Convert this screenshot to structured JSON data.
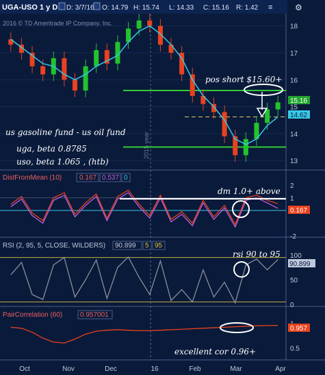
{
  "header": {
    "symbol": "UGA-USO 1 y D",
    "date": "D: 3/7/16",
    "open": "O: 14.79",
    "high": "H: 15.74",
    "low": "L: 14.33",
    "close": "C: 15.16",
    "range": "R: 1.42",
    "copyright": "2016 © TD Ameritrade IP Company, Inc."
  },
  "colors": {
    "background": "#0a1a3a",
    "up_candle": "#22c32e",
    "down_candle": "#e8421e",
    "ma_line": "#38c8e8",
    "support_lines": "#33cc33",
    "annotation": "#ffffff"
  },
  "price_labels": {
    "close": "15.16",
    "ma": "14.62"
  },
  "annotations": {
    "pos_short": "pos short $15.60+",
    "fund_desc": "us gasoline fund - us oil fund",
    "uga_beta": "uga, beta 0.8785",
    "uso_beta": "uso, beta 1.065 , (htb)",
    "year_marker": "2015 year",
    "dm_note": "dm 1.0+ above",
    "rsi_note": "rsi 90 to 95",
    "cor_note": "excellent cor 0.96+"
  },
  "x_axis": {
    "labels": [
      "Oct",
      "Nov",
      "Dec",
      "16",
      "Feb",
      "Mar",
      "Apr"
    ]
  },
  "panels": {
    "price": {
      "y_ticks": [
        "18",
        "17",
        "16",
        "15",
        "14",
        "13"
      ]
    },
    "dfm": {
      "title": "DistFromMean (10)",
      "v1": "0.167",
      "v2": "0.537",
      "v3": "0",
      "y_ticks": [
        "2",
        "1",
        "-2"
      ],
      "last_label": "0.167"
    },
    "rsi": {
      "title": "RSI (2, 95, 5, CLOSE, WILDERS)",
      "v1": "90.899",
      "v2": "5",
      "v3": "95",
      "y_ticks": [
        "100",
        "50",
        "0"
      ],
      "last_label": "90.899"
    },
    "cor": {
      "title": "PairCorrelation (60)",
      "v1": "0.957001",
      "y_ticks": [
        "1",
        "0.5"
      ],
      "last_label": "0.957"
    }
  },
  "chart_data": [
    {
      "type": "candlestick",
      "title": "UGA-USO 1 y D",
      "x": [
        "2015-09-15",
        "2015-09-22",
        "2015-09-29",
        "2015-10-06",
        "2015-10-13",
        "2015-10-20",
        "2015-10-27",
        "2015-11-03",
        "2015-11-10",
        "2015-11-17",
        "2015-11-24",
        "2015-12-01",
        "2015-12-08",
        "2015-12-15",
        "2015-12-22",
        "2015-12-29",
        "2016-01-05",
        "2016-01-12",
        "2016-01-19",
        "2016-01-26",
        "2016-02-02",
        "2016-02-09",
        "2016-02-16",
        "2016-02-23",
        "2016-03-01",
        "2016-03-07"
      ],
      "close": [
        17.3,
        17.0,
        16.5,
        16.2,
        16.8,
        16.0,
        15.6,
        16.5,
        17.1,
        16.6,
        17.4,
        17.9,
        18.2,
        18.0,
        17.3,
        17.0,
        16.2,
        15.4,
        15.1,
        14.8,
        13.9,
        13.2,
        13.8,
        14.4,
        14.9,
        15.16
      ],
      "ma": [
        17.5,
        17.2,
        16.9,
        16.6,
        16.5,
        16.2,
        16.0,
        16.2,
        16.5,
        16.7,
        16.9,
        17.4,
        17.8,
        18.0,
        17.7,
        17.3,
        16.8,
        16.0,
        15.4,
        15.0,
        14.5,
        13.8,
        13.6,
        13.8,
        14.3,
        14.62
      ],
      "levels": [
        15.6,
        14.62,
        13.5
      ],
      "ylim": [
        12.7,
        18.4
      ],
      "y_ticks": [
        18,
        17,
        16,
        15,
        14,
        13
      ]
    },
    {
      "type": "line",
      "title": "DistFromMean (10)",
      "series": [
        {
          "values": [
            0.3,
            0.9,
            -0.4,
            -1.0,
            0.8,
            1.2,
            -0.5,
            0.4,
            1.1,
            -0.8,
            0.9,
            1.4,
            0.3,
            -0.6,
            1.0,
            -0.9,
            -0.3,
            -1.2,
            0.6,
            -0.7,
            0.2,
            -1.3,
            0.8,
            1.0,
            0.6,
            0.167
          ]
        },
        {
          "values": [
            0.5,
            1.1,
            -0.2,
            -0.8,
            1.0,
            1.4,
            -0.3,
            0.6,
            1.3,
            -0.6,
            1.1,
            1.6,
            0.5,
            -0.4,
            1.2,
            -0.7,
            -0.1,
            -1.0,
            0.8,
            -0.5,
            0.4,
            -1.1,
            1.0,
            1.2,
            0.8,
            0.537
          ]
        }
      ],
      "levels": [
        1.0,
        0.0
      ],
      "ylim": [
        -2,
        2
      ],
      "y_ticks": [
        2,
        1,
        -2
      ]
    },
    {
      "type": "line",
      "title": "RSI (2, 95, 5, CLOSE, WILDERS)",
      "series": [
        {
          "values": [
            60,
            85,
            20,
            10,
            80,
            95,
            15,
            50,
            90,
            12,
            75,
            96,
            55,
            20,
            88,
            8,
            30,
            5,
            70,
            15,
            45,
            3,
            80,
            92,
            70,
            90.899
          ]
        }
      ],
      "levels": [
        95,
        5
      ],
      "ylim": [
        0,
        100
      ],
      "y_ticks": [
        100,
        50,
        0
      ]
    },
    {
      "type": "line",
      "title": "PairCorrelation (60)",
      "series": [
        {
          "values": [
            0.92,
            0.9,
            0.82,
            0.7,
            0.62,
            0.6,
            0.68,
            0.78,
            0.84,
            0.86,
            0.87,
            0.86,
            0.85,
            0.85,
            0.86,
            0.87,
            0.88,
            0.89,
            0.9,
            0.91,
            0.92,
            0.93,
            0.94,
            0.95,
            0.955,
            0.957
          ]
        }
      ],
      "ylim": [
        0.3,
        1.05
      ],
      "y_ticks": [
        1,
        0.5
      ]
    }
  ]
}
